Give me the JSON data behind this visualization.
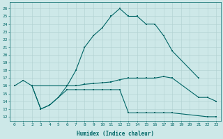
{
  "xlabel": "Humidex (Indice chaleur)",
  "bg_color": "#cde8e8",
  "grid_color": "#b0d0d0",
  "line_color": "#006666",
  "xlim": [
    -0.5,
    23.5
  ],
  "ylim": [
    11.5,
    26.8
  ],
  "yticks": [
    12,
    13,
    14,
    15,
    16,
    17,
    18,
    19,
    20,
    21,
    22,
    23,
    24,
    25,
    26
  ],
  "xticks": [
    0,
    1,
    2,
    3,
    4,
    5,
    6,
    7,
    8,
    9,
    10,
    11,
    12,
    13,
    14,
    15,
    16,
    17,
    18,
    19,
    20,
    21,
    22,
    23
  ],
  "line1_x": [
    0,
    1,
    2,
    6,
    7,
    8,
    9,
    10,
    11,
    12,
    13,
    14,
    15,
    16,
    17,
    18,
    21
  ],
  "line1_y": [
    16,
    16.7,
    16.0,
    16.0,
    18.0,
    21.0,
    22.5,
    23.5,
    25.0,
    26.0,
    25.0,
    25.0,
    24.0,
    24.0,
    22.5,
    20.5,
    17.0
  ],
  "line2_x": [
    2,
    3,
    4,
    5,
    6,
    7,
    8,
    9,
    10,
    11,
    12,
    13,
    14,
    15,
    16,
    17,
    18,
    21,
    22,
    23
  ],
  "line2_y": [
    16.0,
    13.0,
    13.5,
    14.5,
    16.0,
    16.0,
    16.2,
    16.3,
    16.4,
    16.5,
    16.8,
    17.0,
    17.0,
    17.0,
    17.0,
    17.2,
    17.0,
    14.5,
    14.5,
    14.0
  ],
  "line3_x": [
    2,
    3,
    4,
    5,
    6,
    7,
    8,
    9,
    10,
    11,
    12,
    13,
    14,
    15,
    16,
    17,
    18,
    22,
    23
  ],
  "line3_y": [
    16.0,
    13.0,
    13.5,
    14.5,
    15.5,
    15.5,
    15.5,
    15.5,
    15.5,
    15.5,
    15.5,
    12.5,
    12.5,
    12.5,
    12.5,
    12.5,
    12.5,
    12.0,
    12.0
  ]
}
